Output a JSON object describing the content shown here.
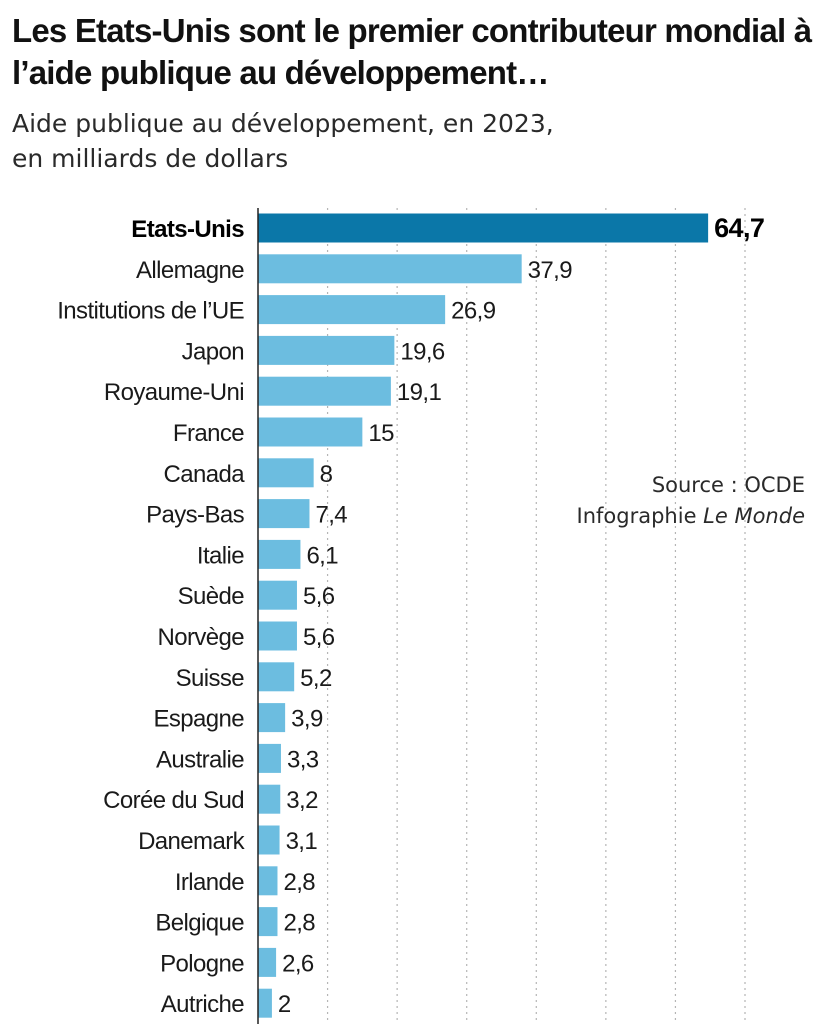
{
  "title": "Les Etats-Unis sont le premier contributeur mondial à l’aide publique au développement…",
  "subtitle_line1": "Aide publique au développement, en 2023,",
  "subtitle_line2": "en milliards de dollars",
  "source_line1": "Source : OCDE",
  "source_line2_prefix": "Infographie ",
  "source_line2_italic": "Le Monde",
  "colors": {
    "highlight": "#0b77a8",
    "bar": "#6cbde0",
    "grid": "#b5b5b5",
    "axis": "#222222"
  },
  "chart_data": {
    "type": "bar",
    "orientation": "horizontal",
    "title": "Les Etats-Unis sont le premier contributeur mondial à l’aide publique au développement…",
    "subtitle": "Aide publique au développement, en 2023, en milliards de dollars",
    "xlim": [
      0,
      70
    ],
    "grid": true,
    "highlight": "Etats-Unis",
    "categories": [
      "Etats-Unis",
      "Allemagne",
      "Institutions de l’UE",
      "Japon",
      "Royaume-Uni",
      "France",
      "Canada",
      "Pays-Bas",
      "Italie",
      "Suède",
      "Norvège",
      "Suisse",
      "Espagne",
      "Australie",
      "Corée du Sud",
      "Danemark",
      "Irlande",
      "Belgique",
      "Pologne",
      "Autriche"
    ],
    "values": [
      64.7,
      37.9,
      26.9,
      19.6,
      19.1,
      15,
      8,
      7.4,
      6.1,
      5.6,
      5.6,
      5.2,
      3.9,
      3.3,
      3.2,
      3.1,
      2.8,
      2.8,
      2.6,
      2
    ],
    "value_labels": [
      "64,7",
      "37,9",
      "26,9",
      "19,6",
      "19,1",
      "15",
      "8",
      "7,4",
      "6,1",
      "5,6",
      "5,6",
      "5,2",
      "3,9",
      "3,3",
      "3,2",
      "3,1",
      "2,8",
      "2,8",
      "2,6",
      "2"
    ]
  }
}
